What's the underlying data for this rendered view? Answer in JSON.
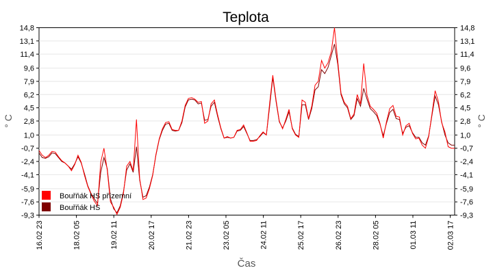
{
  "chart_data": {
    "type": "line",
    "title": "Teplota",
    "xlabel": "Čas",
    "ylabel": "° C",
    "ylim": [
      -9.3,
      14.8
    ],
    "yticks": [
      "14,8",
      "13,1",
      "11,4",
      "9,6",
      "7,9",
      "6,2",
      "4,5",
      "2,8",
      "1,0",
      "-0,7",
      "-2,4",
      "-4,1",
      "-5,9",
      "-7,6",
      "-9,3"
    ],
    "ytick_values": [
      14.8,
      13.1,
      11.4,
      9.6,
      7.9,
      6.2,
      4.5,
      2.8,
      1.0,
      -0.7,
      -2.4,
      -4.1,
      -5.9,
      -7.6,
      -9.3
    ],
    "xticks": [
      "16.02 23",
      "18.02 05",
      "19.02 11",
      "20.02 17",
      "21.02 23",
      "23.02 05",
      "24.02 11",
      "25.02 17",
      "26.02 23",
      "28.02 05",
      "01.03 11",
      "02.03 17"
    ],
    "grid": true,
    "legend_position": "bottom-left",
    "series": [
      {
        "name": "Bouřňák HS přízemní",
        "color": "#ff0000",
        "values": [
          -1.0,
          -1.6,
          -1.9,
          -1.6,
          -1.1,
          -1.2,
          -1.8,
          -2.3,
          -2.6,
          -3.0,
          -3.6,
          -2.8,
          -1.6,
          -2.5,
          -4.2,
          -5.6,
          -6.6,
          -7.5,
          -8.1,
          -2.5,
          -0.7,
          -3.5,
          -7.6,
          -8.3,
          -9.2,
          -8.3,
          -6.5,
          -3.0,
          -2.4,
          -3.6,
          3.0,
          -4.6,
          -7.3,
          -7.1,
          -5.9,
          -4.2,
          -1.5,
          0.5,
          1.8,
          2.6,
          2.7,
          1.7,
          1.6,
          1.6,
          2.8,
          4.8,
          5.7,
          5.8,
          5.6,
          5.2,
          5.3,
          2.5,
          2.8,
          5.0,
          5.5,
          3.6,
          1.9,
          0.6,
          0.8,
          0.6,
          0.7,
          1.6,
          1.7,
          2.3,
          1.3,
          0.2,
          0.2,
          0.3,
          0.9,
          1.4,
          1.0,
          5.0,
          8.7,
          5.5,
          2.8,
          1.8,
          3.0,
          4.3,
          1.8,
          1.0,
          0.7,
          5.5,
          5.2,
          3.1,
          4.7,
          7.4,
          7.9,
          10.6,
          9.6,
          10.3,
          11.7,
          14.8,
          10.5,
          6.4,
          5.2,
          4.7,
          3.1,
          3.7,
          6.2,
          5.0,
          10.2,
          6.1,
          4.7,
          4.3,
          3.8,
          2.5,
          0.6,
          2.7,
          4.4,
          4.8,
          3.4,
          3.3,
          1.0,
          2.2,
          2.5,
          1.2,
          0.5,
          0.6,
          -0.3,
          -0.7,
          0.8,
          3.7,
          6.7,
          5.3,
          2.6,
          1.4,
          -0.5,
          -0.7,
          -0.7
        ]
      },
      {
        "name": "Bouřňák HS",
        "color": "#7f0000",
        "values": [
          -1.3,
          -1.9,
          -2.0,
          -1.8,
          -1.3,
          -1.4,
          -1.9,
          -2.4,
          -2.6,
          -3.0,
          -3.4,
          -2.7,
          -1.8,
          -2.6,
          -4.0,
          -5.5,
          -6.5,
          -7.2,
          -7.8,
          -3.8,
          -1.9,
          -3.3,
          -7.2,
          -8.5,
          -9.0,
          -8.1,
          -6.3,
          -3.5,
          -2.7,
          -3.8,
          -0.5,
          -4.8,
          -7.0,
          -6.8,
          -5.7,
          -4.1,
          -1.6,
          0.4,
          1.6,
          2.4,
          2.5,
          1.6,
          1.5,
          1.6,
          2.6,
          4.6,
          5.5,
          5.6,
          5.5,
          5.0,
          5.1,
          2.9,
          3.0,
          4.7,
          5.2,
          3.4,
          1.8,
          0.6,
          0.7,
          0.6,
          0.7,
          1.5,
          1.6,
          2.1,
          1.2,
          0.3,
          0.3,
          0.4,
          0.8,
          1.3,
          1.0,
          4.6,
          8.4,
          5.3,
          2.7,
          1.9,
          2.8,
          4.0,
          1.9,
          1.1,
          0.8,
          4.9,
          4.9,
          3.0,
          4.4,
          6.8,
          7.2,
          9.4,
          8.9,
          9.7,
          11.2,
          12.7,
          10.1,
          6.2,
          5.0,
          4.5,
          3.0,
          3.5,
          5.7,
          4.7,
          7.0,
          5.6,
          4.4,
          4.0,
          3.5,
          2.4,
          0.9,
          2.5,
          3.9,
          4.3,
          3.1,
          3.0,
          1.2,
          2.0,
          2.2,
          1.3,
          0.7,
          0.7,
          0.0,
          -0.3,
          0.9,
          3.5,
          6.0,
          4.9,
          2.7,
          1.0,
          0.0,
          -0.3,
          -0.3
        ]
      }
    ]
  }
}
